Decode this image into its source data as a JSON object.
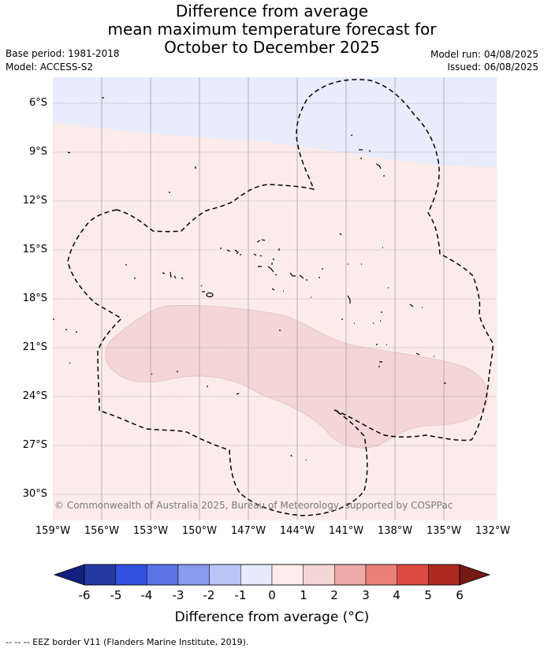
{
  "title": {
    "line1": "Difference from average",
    "line2": "mean maximum temperature forecast for",
    "line3": "October to December 2025"
  },
  "meta": {
    "base_period": "Base period: 1981-2018",
    "model": "Model: ACCESS-S2",
    "model_run": "Model run: 04/08/2025",
    "issued": "Issued: 06/08/2025"
  },
  "map": {
    "lat_labels": [
      "6°S",
      "9°S",
      "12°S",
      "15°S",
      "18°S",
      "21°S",
      "24°S",
      "27°S",
      "30°S"
    ],
    "lon_labels": [
      "159°W",
      "156°W",
      "153°W",
      "150°W",
      "147°W",
      "144°W",
      "141°W",
      "138°W",
      "135°W",
      "132°W"
    ],
    "copyright": "© Commonwealth of Australia 2025, Bureau of Meteorology, supported by COSPPac",
    "fill_colors": {
      "band_-1_0": "#e8ecfb",
      "band_0_1": "#fbecea",
      "band_1_2": "#f4d6d6"
    }
  },
  "colorbar": {
    "ticks": [
      "-6",
      "-5",
      "-4",
      "-3",
      "-2",
      "-1",
      "0",
      "1",
      "2",
      "3",
      "4",
      "5",
      "6"
    ],
    "colors": [
      "#233aa3",
      "#3151e0",
      "#5b73e6",
      "#8a9bef",
      "#bcc5f6",
      "#e6eafc",
      "#fcecea",
      "#f4d6d5",
      "#eeaaa6",
      "#e98078",
      "#dc4b40",
      "#ac2a22"
    ],
    "under_color": "#142080",
    "over_color": "#731a14",
    "label": "Difference from average (°C)"
  },
  "legend_note": "-- -- -- EEZ border V11 (Flanders Marine Institute, 2019)."
}
